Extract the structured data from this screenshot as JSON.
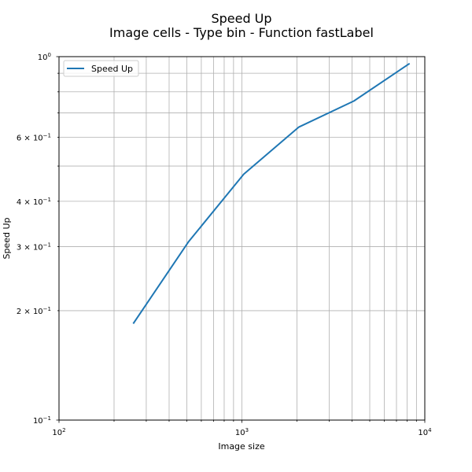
{
  "chart_data": {
    "type": "line",
    "title": "Speed Up",
    "subtitle": "Image cells - Type bin - Function fastLabel",
    "xlabel": "Image size",
    "ylabel": "Speed Up",
    "x_scale": "log",
    "y_scale": "log",
    "xlim": [
      100,
      10000
    ],
    "ylim": [
      0.1,
      1.0
    ],
    "grid": true,
    "grid_includes_minor": true,
    "legend_position": "top-left",
    "x_ticks": [
      {
        "value": 100,
        "base": "10",
        "exp": "2"
      },
      {
        "value": 1000,
        "base": "10",
        "exp": "3"
      },
      {
        "value": 10000,
        "base": "10",
        "exp": "4"
      }
    ],
    "y_ticks": [
      {
        "value": 1.0,
        "mant": "",
        "base": "10",
        "exp": "0"
      },
      {
        "value": 0.6,
        "mant": "6 × ",
        "base": "10",
        "exp": "−1"
      },
      {
        "value": 0.4,
        "mant": "4 × ",
        "base": "10",
        "exp": "−1"
      },
      {
        "value": 0.3,
        "mant": "3 × ",
        "base": "10",
        "exp": "−1"
      },
      {
        "value": 0.2,
        "mant": "2 × ",
        "base": "10",
        "exp": "−1"
      },
      {
        "value": 0.1,
        "mant": "",
        "base": "10",
        "exp": "−1"
      }
    ],
    "series": [
      {
        "name": "Speed Up",
        "color": "#1f77b4",
        "x": [
          256,
          512,
          1024,
          2048,
          4096,
          8192
        ],
        "values": [
          0.185,
          0.31,
          0.475,
          0.64,
          0.755,
          0.955
        ]
      }
    ]
  }
}
